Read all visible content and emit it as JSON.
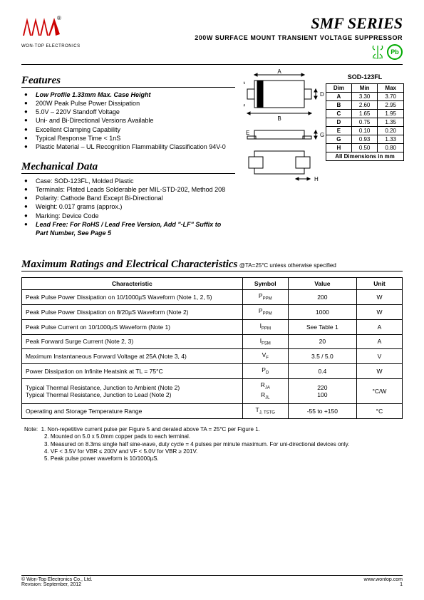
{
  "header": {
    "company": "WON-TOP ELECTRONICS",
    "series": "SMF SERIES",
    "subtitle": "200W SURFACE MOUNT TRANSIENT VOLTAGE SUPPRESSOR",
    "rohs": "RoHS",
    "pb": "Pb"
  },
  "features": {
    "title": "Features",
    "items": [
      "Low Profile 1.33mm Max. Case Height",
      "200W Peak Pulse Power Dissipation",
      "5.0V – 220V Standoff Voltage",
      "Uni- and Bi-Directional Versions Available",
      "Excellent Clamping Capability",
      "Typical Response Time < 1nS",
      "Plastic Material – UL Recognition Flammability Classification 94V-0"
    ],
    "bold_first": true
  },
  "mechanical": {
    "title": "Mechanical Data",
    "items": [
      "Case: SOD-123FL, Molded Plastic",
      "Terminals: Plated Leads Solderable per MIL-STD-202, Method 208",
      "Polarity: Cathode Band Except Bi-Directional",
      "Weight: 0.017 grams (approx.)",
      "Marking: Device Code",
      "Lead Free: For RoHS / Lead Free Version, Add \"-LF\" Suffix to Part Number, See Page 5"
    ],
    "bold_last": true
  },
  "package": {
    "caption": "SOD-123FL",
    "headers": [
      "Dim",
      "Min",
      "Max"
    ],
    "rows": [
      [
        "A",
        "3.30",
        "3.70"
      ],
      [
        "B",
        "2.60",
        "2.95"
      ],
      [
        "C",
        "1.65",
        "1.95"
      ],
      [
        "D",
        "0.75",
        "1.35"
      ],
      [
        "E",
        "0.10",
        "0.20"
      ],
      [
        "G",
        "0.93",
        "1.33"
      ],
      [
        "H",
        "0.50",
        "0.80"
      ]
    ],
    "footer": "All Dimensions in mm"
  },
  "maxratings": {
    "title": "Maximum Ratings and Electrical Characteristics",
    "condition": "@TA=25°C unless otherwise specified",
    "headers": [
      "Characteristic",
      "Symbol",
      "Value",
      "Unit"
    ],
    "rows": [
      {
        "c": "Peak Pulse Power Dissipation on 10/1000µS Waveform (Note 1, 2, 5)",
        "s": "P",
        "sub": "PPM",
        "v": "200",
        "u": "W"
      },
      {
        "c": "Peak Pulse Power Dissipation on 8/20µS Waveform (Note 2)",
        "s": "P",
        "sub": "PPM",
        "v": "1000",
        "u": "W"
      },
      {
        "c": "Peak Pulse Current on 10/1000µS Waveform (Note 1)",
        "s": "I",
        "sub": "PPM",
        "v": "See Table 1",
        "u": "A"
      },
      {
        "c": "Peak Forward Surge Current (Note 2, 3)",
        "s": "I",
        "sub": "FSM",
        "v": "20",
        "u": "A"
      },
      {
        "c": "Maximum Instantaneous Forward Voltage at 25A (Note 3, 4)",
        "s": "V",
        "sub": "F",
        "v": "3.5 / 5.0",
        "u": "V"
      },
      {
        "c": "Power Dissipation on Infinite Heatsink at TL = 75°C",
        "s": "P",
        "sub": "D",
        "v": "0.4",
        "u": "W"
      },
      {
        "c": "Typical Thermal Resistance, Junction to Ambient (Note 2)\nTypical Thermal Resistance, Junction to Lead (Note 2)",
        "s": "R\nR",
        "sub": "JA\nJL",
        "v": "220\n100",
        "u": "°C/W"
      },
      {
        "c": "Operating and Storage Temperature Range",
        "s": "T",
        "sub": "J, TSTG",
        "v": "-55 to +150",
        "u": "°C"
      }
    ]
  },
  "notes": {
    "lead": "Note:",
    "items": [
      "1. Non-repetitive current pulse per Figure 5 and derated above TA = 25°C per Figure 1.",
      "2. Mounted on 5.0 x 5.0mm copper pads to each terminal.",
      "3. Measured on 8.3ms single half sine-wave, duty cycle = 4 pulses per minute maximum. For uni-directional devices only.",
      "4. VF < 3.5V for VBR ≤ 200V and VF < 5.0V for VBR ≥ 201V.",
      "5. Peak pulse power waveform is 10/1000µS."
    ]
  },
  "footer": {
    "copyright": "© Won-Top Electronics Co., Ltd.",
    "revision": "Revision: September, 2012",
    "url": "www.wontop.com",
    "page": "1"
  }
}
